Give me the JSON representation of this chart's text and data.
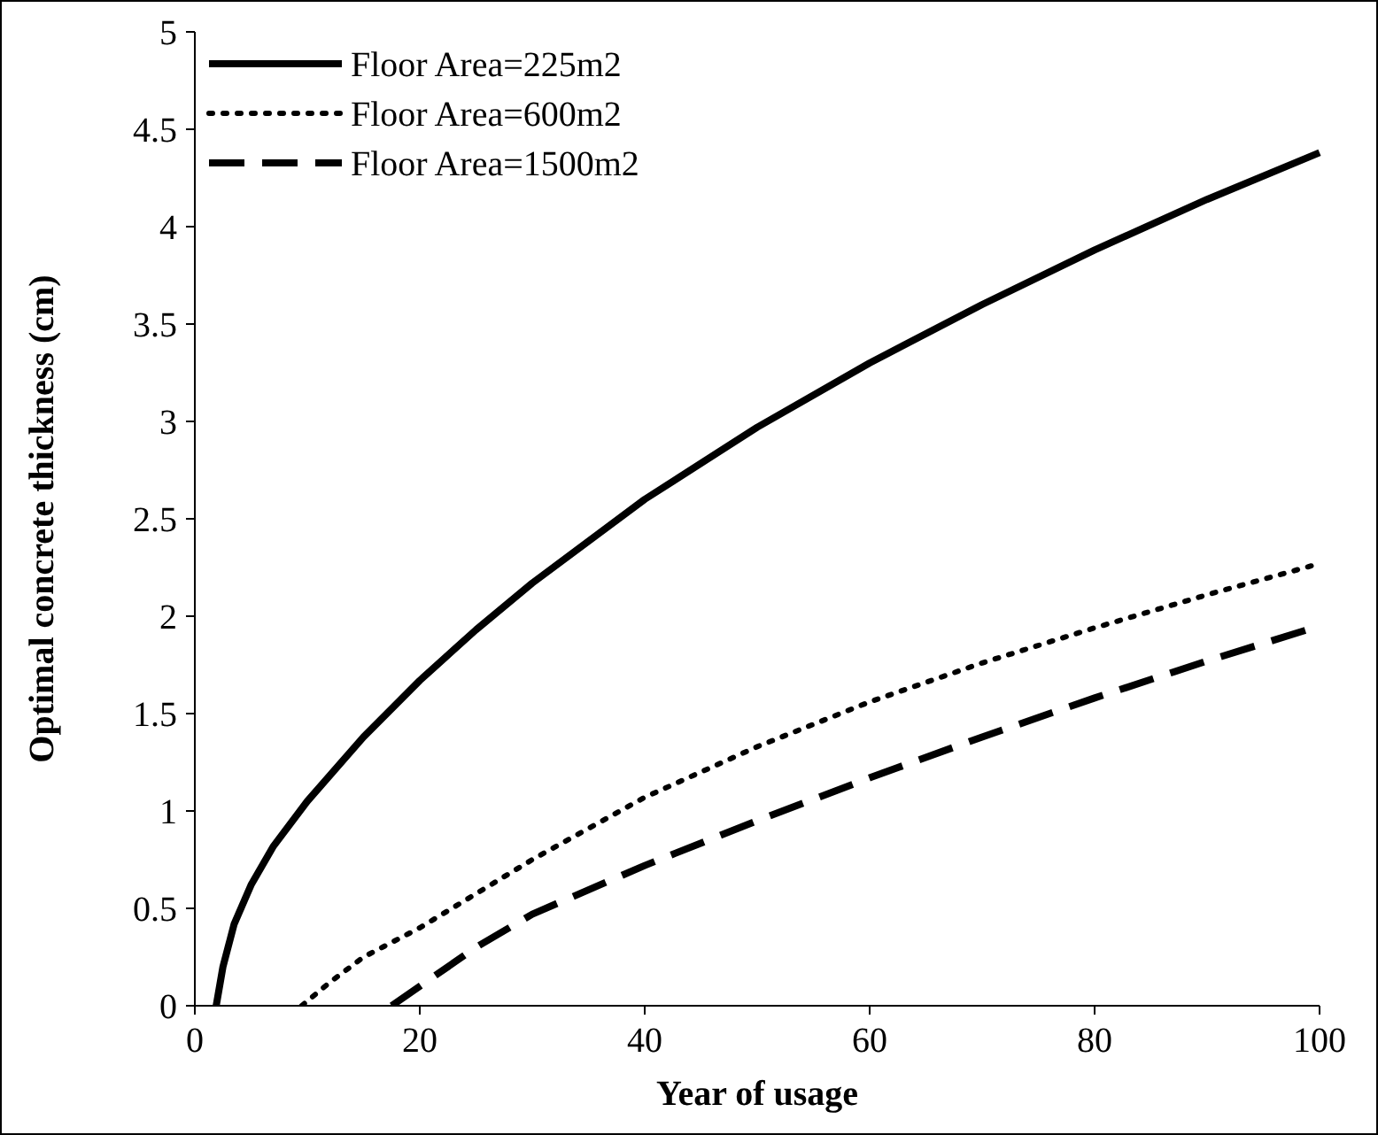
{
  "chart_data": {
    "type": "line",
    "xlabel": "Year of usage",
    "ylabel": "Optimal concrete thickness (cm)",
    "xlim": [
      0,
      100
    ],
    "xticks": [
      0,
      20,
      40,
      60,
      80,
      100
    ],
    "ylim": [
      0,
      5
    ],
    "yticks": [
      0,
      0.5,
      1,
      1.5,
      2,
      2.5,
      3,
      3.5,
      4,
      4.5,
      5
    ],
    "grid": false,
    "legend": "top left",
    "series": [
      {
        "name": "Floor Area=225m2",
        "color": "#000000",
        "line_style": "solid",
        "x": [
          1.9,
          2.5,
          3.5,
          5,
          7,
          10,
          15,
          20,
          25,
          30,
          40,
          50,
          60,
          70,
          80,
          90,
          100
        ],
        "values": [
          0,
          0.2,
          0.42,
          0.62,
          0.82,
          1.05,
          1.38,
          1.67,
          1.93,
          2.17,
          2.6,
          2.97,
          3.3,
          3.6,
          3.88,
          4.14,
          4.38
        ]
      },
      {
        "name": "Floor Area=600m2",
        "color": "#000000",
        "line_style": "dotted",
        "x": [
          9.5,
          12,
          15,
          20,
          30,
          40,
          50,
          60,
          70,
          80,
          90,
          100
        ],
        "values": [
          0,
          0.12,
          0.25,
          0.4,
          0.75,
          1.07,
          1.33,
          1.56,
          1.76,
          1.94,
          2.11,
          2.27
        ]
      },
      {
        "name": "Floor Area=1500m2",
        "color": "#000000",
        "line_style": "dashed",
        "x": [
          17.5,
          20,
          25,
          30,
          40,
          50,
          60,
          70,
          80,
          90,
          100
        ],
        "values": [
          0,
          0.1,
          0.3,
          0.47,
          0.72,
          0.95,
          1.17,
          1.38,
          1.58,
          1.77,
          1.95
        ]
      }
    ]
  }
}
